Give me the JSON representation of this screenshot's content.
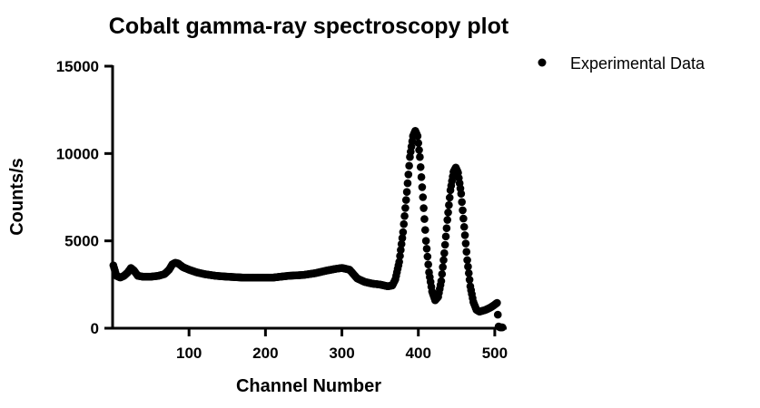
{
  "chart_data": {
    "type": "scatter",
    "title": "Cobalt gamma-ray spectroscopy plot",
    "xlabel": "Channel Number",
    "ylabel": "Counts/s",
    "xlim": [
      0,
      512
    ],
    "ylim": [
      0,
      15000
    ],
    "x_ticks": [
      100,
      200,
      300,
      400,
      500
    ],
    "y_ticks": [
      0,
      5000,
      10000,
      15000
    ],
    "grid": false,
    "legend_position": "top-right",
    "marker_color": "#000000",
    "series": [
      {
        "name": "Experimental Data",
        "key_points": [
          [
            1,
            3600
          ],
          [
            5,
            3000
          ],
          [
            10,
            2900
          ],
          [
            15,
            3000
          ],
          [
            20,
            3200
          ],
          [
            24,
            3450
          ],
          [
            28,
            3300
          ],
          [
            33,
            3000
          ],
          [
            40,
            2950
          ],
          [
            50,
            2950
          ],
          [
            60,
            3000
          ],
          [
            68,
            3100
          ],
          [
            74,
            3350
          ],
          [
            78,
            3650
          ],
          [
            82,
            3750
          ],
          [
            86,
            3700
          ],
          [
            92,
            3500
          ],
          [
            100,
            3350
          ],
          [
            110,
            3200
          ],
          [
            120,
            3100
          ],
          [
            135,
            3000
          ],
          [
            150,
            2950
          ],
          [
            170,
            2900
          ],
          [
            190,
            2900
          ],
          [
            210,
            2900
          ],
          [
            230,
            3000
          ],
          [
            250,
            3050
          ],
          [
            265,
            3150
          ],
          [
            280,
            3300
          ],
          [
            292,
            3400
          ],
          [
            300,
            3450
          ],
          [
            310,
            3350
          ],
          [
            315,
            3100
          ],
          [
            320,
            2850
          ],
          [
            330,
            2650
          ],
          [
            340,
            2550
          ],
          [
            350,
            2500
          ],
          [
            360,
            2400
          ],
          [
            366,
            2450
          ],
          [
            370,
            2800
          ],
          [
            375,
            3800
          ],
          [
            380,
            5500
          ],
          [
            385,
            7800
          ],
          [
            389,
            9800
          ],
          [
            393,
            11000
          ],
          [
            396,
            11300
          ],
          [
            399,
            11000
          ],
          [
            402,
            9800
          ],
          [
            406,
            7500
          ],
          [
            410,
            5000
          ],
          [
            414,
            3200
          ],
          [
            418,
            2100
          ],
          [
            422,
            1600
          ],
          [
            426,
            1800
          ],
          [
            430,
            2700
          ],
          [
            434,
            4300
          ],
          [
            438,
            6200
          ],
          [
            442,
            7900
          ],
          [
            446,
            8950
          ],
          [
            449,
            9200
          ],
          [
            452,
            8900
          ],
          [
            456,
            7700
          ],
          [
            460,
            5800
          ],
          [
            464,
            3900
          ],
          [
            468,
            2400
          ],
          [
            472,
            1500
          ],
          [
            476,
            1050
          ],
          [
            480,
            950
          ],
          [
            488,
            1050
          ],
          [
            495,
            1200
          ],
          [
            500,
            1350
          ],
          [
            503,
            1450
          ],
          [
            505,
            100
          ],
          [
            507,
            50
          ],
          [
            510,
            50
          ]
        ]
      }
    ]
  }
}
